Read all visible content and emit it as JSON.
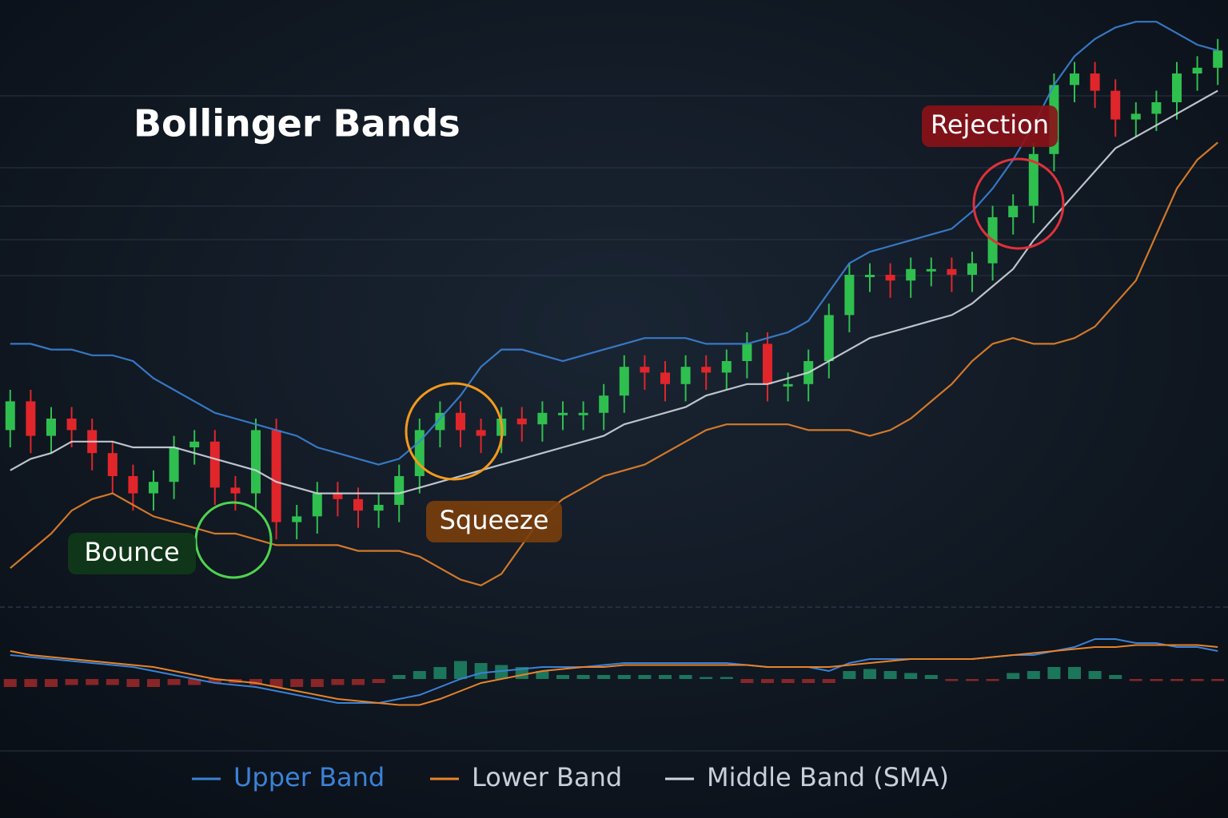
{
  "chart_data": [
    {
      "type": "candlestick",
      "title": "Bollinger Bands",
      "open": [
        28,
        33,
        27,
        30,
        28,
        24,
        20,
        17,
        19,
        25,
        26,
        18,
        17,
        28,
        12,
        13,
        17,
        16,
        14,
        15,
        20,
        28,
        31,
        28,
        27,
        30,
        29,
        31,
        31,
        31,
        34,
        39,
        38,
        36,
        39,
        38,
        40,
        43,
        36,
        36,
        40,
        48,
        55,
        55,
        54,
        56,
        56,
        55,
        57,
        65,
        67,
        76,
        88,
        90,
        87,
        82,
        83,
        85,
        90,
        91
      ],
      "high": [
        35,
        35,
        32,
        32,
        30,
        26,
        22,
        21,
        27,
        28,
        28,
        20,
        30,
        30,
        15,
        19,
        19,
        18,
        17,
        22,
        30,
        33,
        33,
        30,
        32,
        32,
        33,
        33,
        33,
        36,
        41,
        41,
        40,
        41,
        41,
        42,
        45,
        45,
        38,
        42,
        50,
        57,
        57,
        57,
        58,
        58,
        58,
        59,
        67,
        69,
        78,
        90,
        92,
        92,
        89,
        85,
        87,
        92,
        93,
        96
      ],
      "low": [
        25,
        24,
        24,
        25,
        21,
        17,
        14,
        14,
        16,
        22,
        15,
        14,
        14,
        9,
        9,
        10,
        13,
        11,
        11,
        12,
        17,
        25,
        25,
        24,
        24,
        26,
        26,
        28,
        28,
        28,
        31,
        35,
        33,
        33,
        35,
        35,
        37,
        33,
        33,
        33,
        37,
        45,
        52,
        51,
        51,
        53,
        52,
        52,
        54,
        62,
        64,
        73,
        85,
        84,
        79,
        79,
        80,
        82,
        87,
        88
      ],
      "close": [
        33,
        27,
        30,
        28,
        24,
        20,
        17,
        19,
        25,
        26,
        18,
        17,
        28,
        12,
        13,
        17,
        16,
        14,
        15,
        20,
        28,
        31,
        28,
        27,
        30,
        29,
        31,
        31,
        31,
        34,
        39,
        38,
        36,
        39,
        38,
        40,
        43,
        36,
        36,
        40,
        48,
        55,
        55,
        54,
        56,
        56,
        55,
        57,
        65,
        67,
        76,
        88,
        90,
        87,
        82,
        83,
        85,
        90,
        91,
        94
      ],
      "up_color": "#2fbf4f",
      "down_color": "#e0262b",
      "series": [
        {
          "name": "Upper Band",
          "color": "#3b82d6",
          "values": [
            43,
            43,
            42,
            42,
            41,
            41,
            40,
            37,
            35,
            33,
            31,
            30,
            29,
            28,
            27,
            25,
            24,
            23,
            22,
            23,
            26,
            30,
            34,
            39,
            42,
            42,
            41,
            40,
            41,
            42,
            43,
            44,
            44,
            44,
            43,
            43,
            43,
            44,
            45,
            47,
            52,
            57,
            59,
            60,
            61,
            62,
            63,
            66,
            70,
            75,
            81,
            88,
            93,
            96,
            98,
            99,
            99,
            97,
            95,
            94
          ]
        },
        {
          "name": "Lower Band",
          "color": "#e8832a",
          "values": [
            4,
            7,
            10,
            14,
            16,
            17,
            15,
            13,
            12,
            11,
            10,
            10,
            9,
            8,
            8,
            8,
            8,
            7,
            7,
            7,
            6,
            4,
            2,
            1,
            3,
            8,
            13,
            16,
            18,
            20,
            21,
            22,
            24,
            26,
            28,
            29,
            29,
            29,
            29,
            28,
            28,
            28,
            27,
            28,
            30,
            33,
            36,
            40,
            43,
            44,
            43,
            43,
            44,
            46,
            50,
            54,
            62,
            70,
            75,
            78
          ]
        },
        {
          "name": "Middle Band (SMA)",
          "color": "#cfd6df",
          "values": [
            21,
            23,
            24,
            26,
            26,
            26,
            25,
            25,
            25,
            24,
            23,
            22,
            21,
            19,
            18,
            17,
            17,
            17,
            17,
            17,
            18,
            19,
            20,
            21,
            22,
            23,
            24,
            25,
            26,
            27,
            29,
            30,
            31,
            32,
            34,
            35,
            36,
            36,
            37,
            38,
            40,
            42,
            44,
            45,
            46,
            47,
            48,
            50,
            53,
            56,
            61,
            65,
            69,
            73,
            77,
            79,
            81,
            83,
            85,
            87
          ]
        }
      ],
      "annotations": [
        "Bounce",
        "Squeeze",
        "Rejection"
      ],
      "ylim": [
        0,
        100
      ],
      "legend": "bottom"
    },
    {
      "type": "indicator",
      "series": [
        {
          "color": "#3b82d6",
          "values": [
            6,
            5.5,
            5,
            4.5,
            4,
            3.5,
            3,
            2,
            1,
            0,
            -1,
            -1.5,
            -2,
            -3,
            -4,
            -5,
            -6,
            -6,
            -6,
            -5,
            -4,
            -2,
            0,
            1.5,
            2,
            2.5,
            3,
            3,
            3,
            3.5,
            4,
            4,
            4,
            4,
            4,
            4,
            3.5,
            3,
            3,
            3,
            2,
            4,
            5,
            5,
            5,
            5,
            5,
            5,
            5.5,
            6,
            6,
            7,
            8,
            10,
            10,
            9,
            9,
            8,
            8,
            7
          ]
        },
        {
          "color": "#e8832a",
          "values": [
            7,
            6,
            5.5,
            5,
            4.5,
            4,
            3.5,
            3,
            2,
            1,
            0,
            -0.5,
            -1,
            -2,
            -3,
            -4,
            -5,
            -5.5,
            -6,
            -6.5,
            -6.5,
            -5,
            -3,
            -1,
            0,
            1,
            2,
            2.5,
            3,
            3,
            3.5,
            3.5,
            3.5,
            3.5,
            3.5,
            3.5,
            3.5,
            3,
            3,
            3,
            3,
            3.5,
            4,
            4.5,
            5,
            5,
            5,
            5,
            5.5,
            6,
            6.5,
            7,
            7.5,
            8,
            8,
            8.5,
            8.5,
            8.5,
            8.5,
            8
          ]
        }
      ],
      "histogram": {
        "values": [
          -2,
          -2,
          -2,
          -1.5,
          -1.5,
          -1.5,
          -2,
          -2,
          -1.5,
          -1.5,
          -1,
          -1,
          -1.5,
          -2,
          -2,
          -2,
          -1.5,
          -1.5,
          -1,
          1,
          2,
          3,
          4.5,
          4,
          3.5,
          3,
          2,
          1,
          1,
          1,
          1,
          1,
          1,
          1,
          0.5,
          0.5,
          -1,
          -1,
          -1,
          -1,
          -1,
          2,
          2.5,
          2,
          1.5,
          1,
          -0.5,
          -0.5,
          -0.5,
          1.5,
          2,
          3,
          3,
          2,
          1,
          -0.5,
          -0.5,
          -0.5,
          -0.5,
          -0.5
        ],
        "up_color": "#1f8f6a",
        "down_color": "#a82a2a"
      },
      "ylim": [
        -10,
        12
      ]
    }
  ]
}
